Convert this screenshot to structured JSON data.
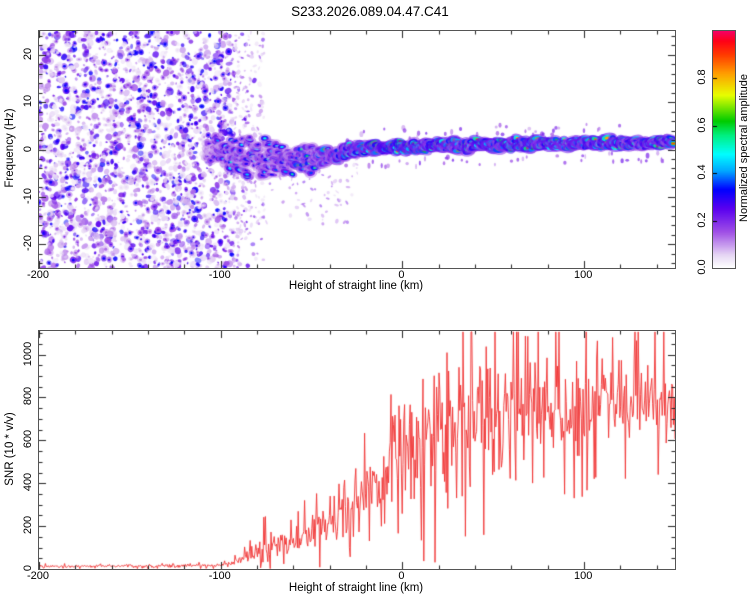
{
  "title": "S233.2026.089.04.47.C41",
  "colors": {
    "trace": "#f03333",
    "frame": "#555555",
    "tick": "#222222",
    "text": "#000000"
  },
  "colormap": {
    "stops": [
      [
        0.0,
        "#ffffff"
      ],
      [
        0.05,
        "#e8d9f5"
      ],
      [
        0.15,
        "#a050e6"
      ],
      [
        0.25,
        "#5a00f0"
      ],
      [
        0.33,
        "#0000ff"
      ],
      [
        0.41,
        "#00aaff"
      ],
      [
        0.48,
        "#00ffff"
      ],
      [
        0.56,
        "#00f080"
      ],
      [
        0.62,
        "#00cc00"
      ],
      [
        0.73,
        "#e8ff00"
      ],
      [
        0.82,
        "#ffa000"
      ],
      [
        0.9,
        "#ff3c00"
      ],
      [
        0.96,
        "#ff0018"
      ],
      [
        1.0,
        "#f50064"
      ]
    ]
  },
  "top_panel": {
    "ylabel": "Frequency (Hz)",
    "xlabel": "Height of straight line (km)",
    "xlim": [
      -200,
      150
    ],
    "ylim": [
      -25,
      25
    ],
    "xticks": [
      -200,
      -100,
      0,
      100
    ],
    "yticks": [
      -20,
      -10,
      0,
      10,
      20
    ],
    "x_minor": 20,
    "y_minor": 2
  },
  "colorbar": {
    "label": "Normalized spectral amplitude",
    "ticks": [
      "0.0",
      "0.2",
      "0.4",
      "0.6",
      "0.8"
    ],
    "tick_values": [
      0.0,
      0.2,
      0.4,
      0.6,
      0.8
    ],
    "range": [
      0,
      1
    ]
  },
  "bottom_panel": {
    "ylabel": "SNR (10 * v/v)",
    "xlabel": "Height of straight line (km)",
    "xlim": [
      -200,
      150
    ],
    "ylim": [
      0,
      1110
    ],
    "xticks": [
      -200,
      -100,
      0,
      100
    ],
    "yticks": [
      0,
      200,
      400,
      600,
      800,
      1000
    ],
    "x_minor": 20,
    "y_minor": 50
  },
  "chart_data": [
    {
      "type": "heatmap",
      "title": "Doppler spectrogram",
      "xlabel": "Height of straight line (km)",
      "ylabel": "Frequency (Hz)",
      "xlim": [
        -200,
        150
      ],
      "ylim": [
        -25,
        25
      ],
      "legend": "colorbar: Normalized spectral amplitude 0.0-1.0",
      "noise_region": {
        "x_range": [
          -200,
          -93
        ],
        "fade_to": -76,
        "value_range": [
          0.03,
          0.33
        ],
        "blob_count": 2400,
        "tail_count": 260
      },
      "subtrail": {
        "x_range": [
          -78,
          -22
        ],
        "f_range": [
          -16,
          -2
        ],
        "count": 90
      },
      "echo_band": {
        "x": [
          -108,
          -102,
          -97,
          -92,
          -87,
          -82,
          -77,
          -72,
          -67,
          -62,
          -57,
          -52,
          -47,
          -42,
          -38,
          -34,
          -30,
          -26,
          -22,
          -18,
          -14,
          -10,
          -6,
          -2,
          2,
          6,
          10,
          15,
          20,
          25,
          30,
          35,
          40,
          45,
          50,
          55,
          60,
          65,
          70,
          75,
          80,
          85,
          90,
          95,
          100,
          105,
          110,
          115,
          120,
          125,
          130,
          135,
          140,
          145,
          149
        ],
        "center_freq": [
          -0.5,
          -0.5,
          -1,
          -1.5,
          -2,
          -1.5,
          -2.5,
          -2,
          -1.5,
          -2.5,
          -2,
          -2.5,
          -2,
          -1.5,
          -1,
          -0.5,
          0,
          0.3,
          0.2,
          0.4,
          0.3,
          0.4,
          0.5,
          0.5,
          0.5,
          0.6,
          0.6,
          0.7,
          0.7,
          0.8,
          0.8,
          0.9,
          0.9,
          1,
          1,
          1,
          1.1,
          1.1,
          1.1,
          1.2,
          1.2,
          1.2,
          1.2,
          1.3,
          1.3,
          1.3,
          1.3,
          1.4,
          1.4,
          1.4,
          1.4,
          1.5,
          1.5,
          1.5,
          1.5
        ],
        "spread_hz": [
          2.5,
          3.5,
          4.5,
          5,
          5,
          5.5,
          5,
          5,
          4.5,
          4.5,
          4,
          3.5,
          3,
          2.5,
          2.2,
          1.9,
          1.6,
          1.5,
          1.5,
          1.4,
          1.4,
          1.4,
          1.4,
          1.4,
          1.4,
          1.4,
          1.4,
          1.5,
          1.5,
          1.5,
          1.5,
          1.5,
          1.5,
          1.5,
          1.5,
          1.4,
          1.4,
          1.4,
          1.4,
          1.4,
          1.4,
          1.3,
          1.3,
          1.3,
          1.3,
          1.3,
          1.3,
          1.2,
          1.2,
          1.2,
          1.2,
          1.2,
          1.2,
          1.2,
          1.2
        ],
        "intensity": [
          0.3,
          0.4,
          0.5,
          0.55,
          0.5,
          0.55,
          0.5,
          0.55,
          0.5,
          0.55,
          0.6,
          0.6,
          0.6,
          0.65,
          0.7,
          0.75,
          0.85,
          0.9,
          0.95,
          0.9,
          1.0,
          0.95,
          1.0,
          0.95,
          1.0,
          0.9,
          0.95,
          0.9,
          0.95,
          0.9,
          0.95,
          0.9,
          0.95,
          0.9,
          0.95,
          0.9,
          0.95,
          0.9,
          0.95,
          0.9,
          0.95,
          0.9,
          0.95,
          0.9,
          0.95,
          0.9,
          0.95,
          0.9,
          0.95,
          0.9,
          0.95,
          0.9,
          0.95,
          0.9,
          0.9
        ]
      }
    },
    {
      "type": "line",
      "title": "SNR profile",
      "xlabel": "Height of straight line (km)",
      "ylabel": "SNR (10 * v/v)",
      "xlim": [
        -200,
        150
      ],
      "ylim": [
        0,
        1110
      ],
      "series": [
        {
          "name": "SNR",
          "color": "#f03333",
          "x": [
            -200,
            -180,
            -160,
            -140,
            -120,
            -110,
            -100,
            -95,
            -90,
            -85,
            -80,
            -76,
            -72,
            -68,
            -64,
            -60,
            -56,
            -52,
            -48,
            -44,
            -40,
            -36,
            -32,
            -28,
            -24,
            -20,
            -16,
            -12,
            -8,
            -4,
            0,
            4,
            8,
            12,
            16,
            20,
            24,
            28,
            32,
            36,
            40,
            44,
            48,
            52,
            56,
            60,
            64,
            68,
            72,
            76,
            80,
            85,
            90,
            95,
            100,
            105,
            110,
            115,
            120,
            125,
            130,
            135,
            140,
            145,
            149
          ],
          "mean": [
            12,
            12,
            13,
            13,
            14,
            15,
            18,
            22,
            30,
            45,
            70,
            100,
            115,
            105,
            100,
            110,
            125,
            150,
            165,
            180,
            200,
            225,
            250,
            280,
            300,
            330,
            370,
            410,
            440,
            460,
            480,
            510,
            530,
            550,
            565,
            580,
            600,
            615,
            630,
            645,
            650,
            660,
            660,
            665,
            670,
            680,
            690,
            695,
            700,
            700,
            705,
            715,
            720,
            725,
            730,
            735,
            740,
            745,
            748,
            750,
            752,
            755,
            758,
            760,
            760
          ],
          "jitter": [
            8,
            8,
            8,
            9,
            9,
            10,
            12,
            15,
            25,
            40,
            60,
            105,
            90,
            70,
            70,
            80,
            90,
            105,
            110,
            120,
            140,
            155,
            170,
            185,
            190,
            215,
            245,
            270,
            285,
            300,
            325,
            345,
            355,
            370,
            385,
            395,
            415,
            425,
            430,
            445,
            430,
            420,
            425,
            420,
            415,
            425,
            400,
            390,
            380,
            365,
            345,
            330,
            320,
            310,
            300,
            290,
            280,
            270,
            262,
            255,
            248,
            240,
            230,
            222,
            215
          ]
        }
      ]
    }
  ]
}
